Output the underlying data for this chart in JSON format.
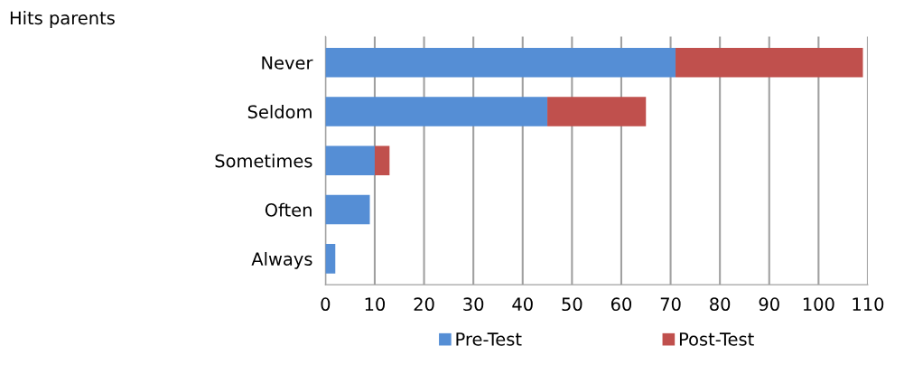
{
  "chart_data": {
    "type": "bar",
    "orientation": "horizontal",
    "stacked": true,
    "title": "Hits parents",
    "categories": [
      "Never",
      "Seldom",
      "Sometimes",
      "Often",
      "Always"
    ],
    "series": [
      {
        "name": "Pre-Test",
        "color": "#558ed5",
        "values": [
          71,
          45,
          10,
          9,
          2
        ]
      },
      {
        "name": "Post-Test",
        "color": "#c0504d",
        "values": [
          38,
          20,
          3,
          0,
          0
        ]
      }
    ],
    "xlim": [
      0,
      110
    ],
    "xticks": [
      0,
      10,
      20,
      30,
      40,
      50,
      60,
      70,
      80,
      90,
      100,
      110
    ],
    "grid": "x",
    "legend": "bottom"
  }
}
